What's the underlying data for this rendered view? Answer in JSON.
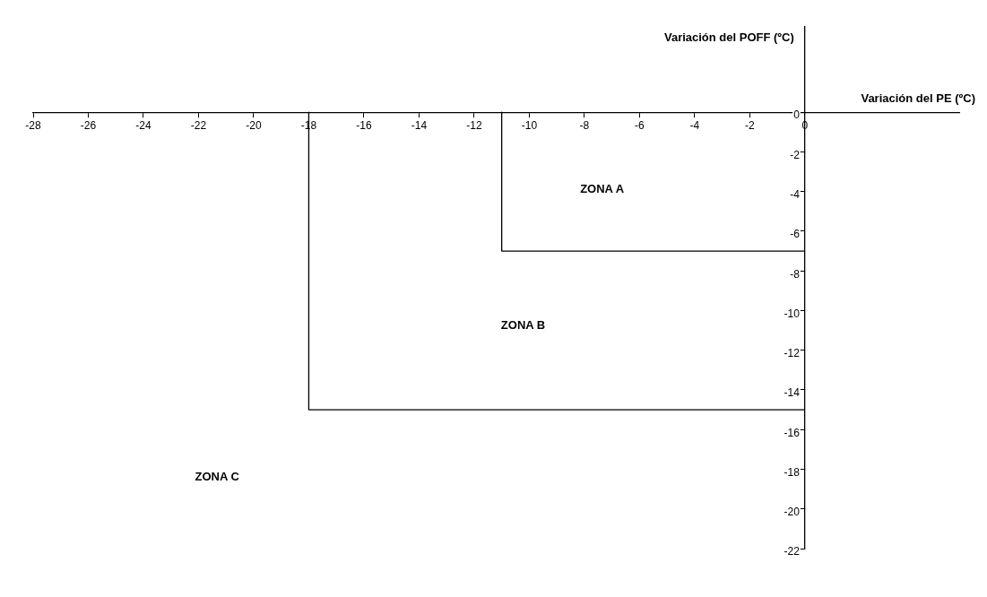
{
  "chart_data": {
    "type": "line",
    "xlabel": "Variación del PE (ºC)",
    "ylabel": "Variación del POFF (ºC)",
    "xlim": [
      -28,
      5.6
    ],
    "ylim": [
      -22,
      4.3
    ],
    "xticks": [
      -28,
      -26,
      -24,
      -22,
      -20,
      -18,
      -16,
      -14,
      -12,
      -10,
      -8,
      -6,
      -4,
      -2,
      0
    ],
    "yticks": [
      0,
      -2,
      -4,
      -6,
      -8,
      -10,
      -12,
      -14,
      -16,
      -18,
      -20,
      -22
    ],
    "series": [
      {
        "color": "#000000",
        "x": [
          -11,
          -11,
          0
        ],
        "values": [
          0,
          -7,
          -7
        ]
      },
      {
        "color": "#000000",
        "x": [
          -18,
          -18,
          0
        ],
        "values": [
          0,
          -15,
          -15
        ]
      }
    ],
    "annotations": [
      "ZONA A",
      "ZONA B",
      "ZONA C"
    ],
    "grid": false,
    "legend": false,
    "marker": "none",
    "line_style": "solid"
  }
}
